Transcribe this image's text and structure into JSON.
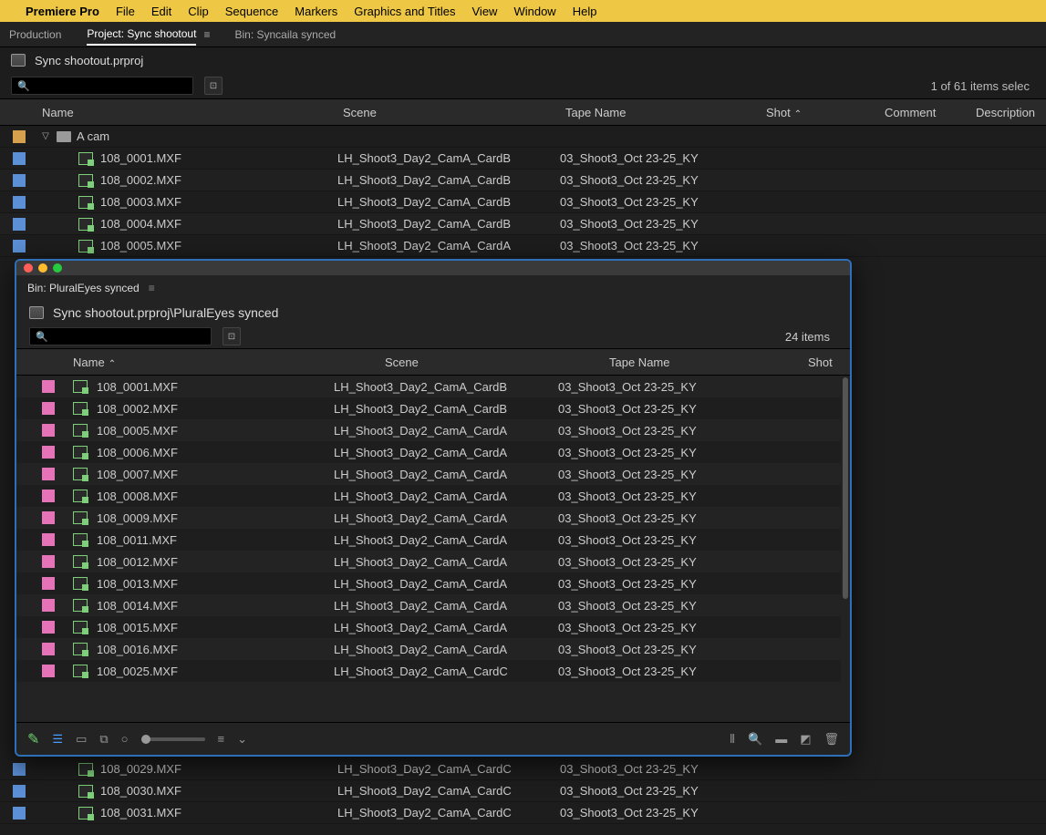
{
  "colors": {
    "menubar_bg": "#eec845",
    "body_bg": "#1d1d1d",
    "swatch_blue": "#5b8fd6",
    "swatch_orange": "#d6a14c",
    "swatch_pink": "#e573b8",
    "window_border": "#2d6fb8"
  },
  "menubar": {
    "app": "Premiere Pro",
    "items": [
      "File",
      "Edit",
      "Clip",
      "Sequence",
      "Markers",
      "Graphics and Titles",
      "View",
      "Window",
      "Help"
    ]
  },
  "tabs": {
    "items": [
      {
        "label": "Production",
        "active": false
      },
      {
        "label": "Project: Sync shootout",
        "active": true
      },
      {
        "label": "Bin: Syncaila synced",
        "active": false
      }
    ]
  },
  "project_path": "Sync shootout.prproj",
  "selected_count_text": "1 of 61 items selec",
  "main_columns": {
    "name": "Name",
    "scene": "Scene",
    "tape": "Tape Name",
    "shot": "Shot",
    "comment": "Comment",
    "description": "Description"
  },
  "main_folder": {
    "label": "A cam",
    "swatch": "orange"
  },
  "main_rows": [
    {
      "name": "108_0001.MXF",
      "scene": "LH_Shoot3_Day2_CamA_CardB",
      "tape": "03_Shoot3_Oct 23-25_KY",
      "swatch": "blue"
    },
    {
      "name": "108_0002.MXF",
      "scene": "LH_Shoot3_Day2_CamA_CardB",
      "tape": "03_Shoot3_Oct 23-25_KY",
      "swatch": "blue"
    },
    {
      "name": "108_0003.MXF",
      "scene": "LH_Shoot3_Day2_CamA_CardB",
      "tape": "03_Shoot3_Oct 23-25_KY",
      "swatch": "blue"
    },
    {
      "name": "108_0004.MXF",
      "scene": "LH_Shoot3_Day2_CamA_CardB",
      "tape": "03_Shoot3_Oct 23-25_KY",
      "swatch": "blue"
    },
    {
      "name": "108_0005.MXF",
      "scene": "LH_Shoot3_Day2_CamA_CardA",
      "tape": "03_Shoot3_Oct 23-25_KY",
      "swatch": "blue"
    }
  ],
  "behind_rows": [
    {
      "name": "108_0029.MXF",
      "scene": "LH_Shoot3_Day2_CamA_CardC",
      "tape": "03_Shoot3_Oct 23-25_KY",
      "swatch": "blue"
    },
    {
      "name": "108_0030.MXF",
      "scene": "LH_Shoot3_Day2_CamA_CardC",
      "tape": "03_Shoot3_Oct 23-25_KY",
      "swatch": "blue"
    },
    {
      "name": "108_0031.MXF",
      "scene": "LH_Shoot3_Day2_CamA_CardC",
      "tape": "03_Shoot3_Oct 23-25_KY",
      "swatch": "blue"
    }
  ],
  "float": {
    "tab_label": "Bin: PluralEyes synced",
    "path": "Sync shootout.prproj\\PluralEyes synced",
    "item_count": "24 items",
    "columns": {
      "name": "Name",
      "scene": "Scene",
      "tape": "Tape Name",
      "shot": "Shot"
    },
    "rows": [
      {
        "name": "108_0001.MXF",
        "scene": "LH_Shoot3_Day2_CamA_CardB",
        "tape": "03_Shoot3_Oct 23-25_KY",
        "swatch": "pink"
      },
      {
        "name": "108_0002.MXF",
        "scene": "LH_Shoot3_Day2_CamA_CardB",
        "tape": "03_Shoot3_Oct 23-25_KY",
        "swatch": "pink"
      },
      {
        "name": "108_0005.MXF",
        "scene": "LH_Shoot3_Day2_CamA_CardA",
        "tape": "03_Shoot3_Oct 23-25_KY",
        "swatch": "pink"
      },
      {
        "name": "108_0006.MXF",
        "scene": "LH_Shoot3_Day2_CamA_CardA",
        "tape": "03_Shoot3_Oct 23-25_KY",
        "swatch": "pink"
      },
      {
        "name": "108_0007.MXF",
        "scene": "LH_Shoot3_Day2_CamA_CardA",
        "tape": "03_Shoot3_Oct 23-25_KY",
        "swatch": "pink"
      },
      {
        "name": "108_0008.MXF",
        "scene": "LH_Shoot3_Day2_CamA_CardA",
        "tape": "03_Shoot3_Oct 23-25_KY",
        "swatch": "pink"
      },
      {
        "name": "108_0009.MXF",
        "scene": "LH_Shoot3_Day2_CamA_CardA",
        "tape": "03_Shoot3_Oct 23-25_KY",
        "swatch": "pink"
      },
      {
        "name": "108_0011.MXF",
        "scene": "LH_Shoot3_Day2_CamA_CardA",
        "tape": "03_Shoot3_Oct 23-25_KY",
        "swatch": "pink"
      },
      {
        "name": "108_0012.MXF",
        "scene": "LH_Shoot3_Day2_CamA_CardA",
        "tape": "03_Shoot3_Oct 23-25_KY",
        "swatch": "pink"
      },
      {
        "name": "108_0013.MXF",
        "scene": "LH_Shoot3_Day2_CamA_CardA",
        "tape": "03_Shoot3_Oct 23-25_KY",
        "swatch": "pink"
      },
      {
        "name": "108_0014.MXF",
        "scene": "LH_Shoot3_Day2_CamA_CardA",
        "tape": "03_Shoot3_Oct 23-25_KY",
        "swatch": "pink"
      },
      {
        "name": "108_0015.MXF",
        "scene": "LH_Shoot3_Day2_CamA_CardA",
        "tape": "03_Shoot3_Oct 23-25_KY",
        "swatch": "pink"
      },
      {
        "name": "108_0016.MXF",
        "scene": "LH_Shoot3_Day2_CamA_CardA",
        "tape": "03_Shoot3_Oct 23-25_KY",
        "swatch": "pink"
      },
      {
        "name": "108_0025.MXF",
        "scene": "LH_Shoot3_Day2_CamA_CardC",
        "tape": "03_Shoot3_Oct 23-25_KY",
        "swatch": "pink"
      }
    ]
  }
}
